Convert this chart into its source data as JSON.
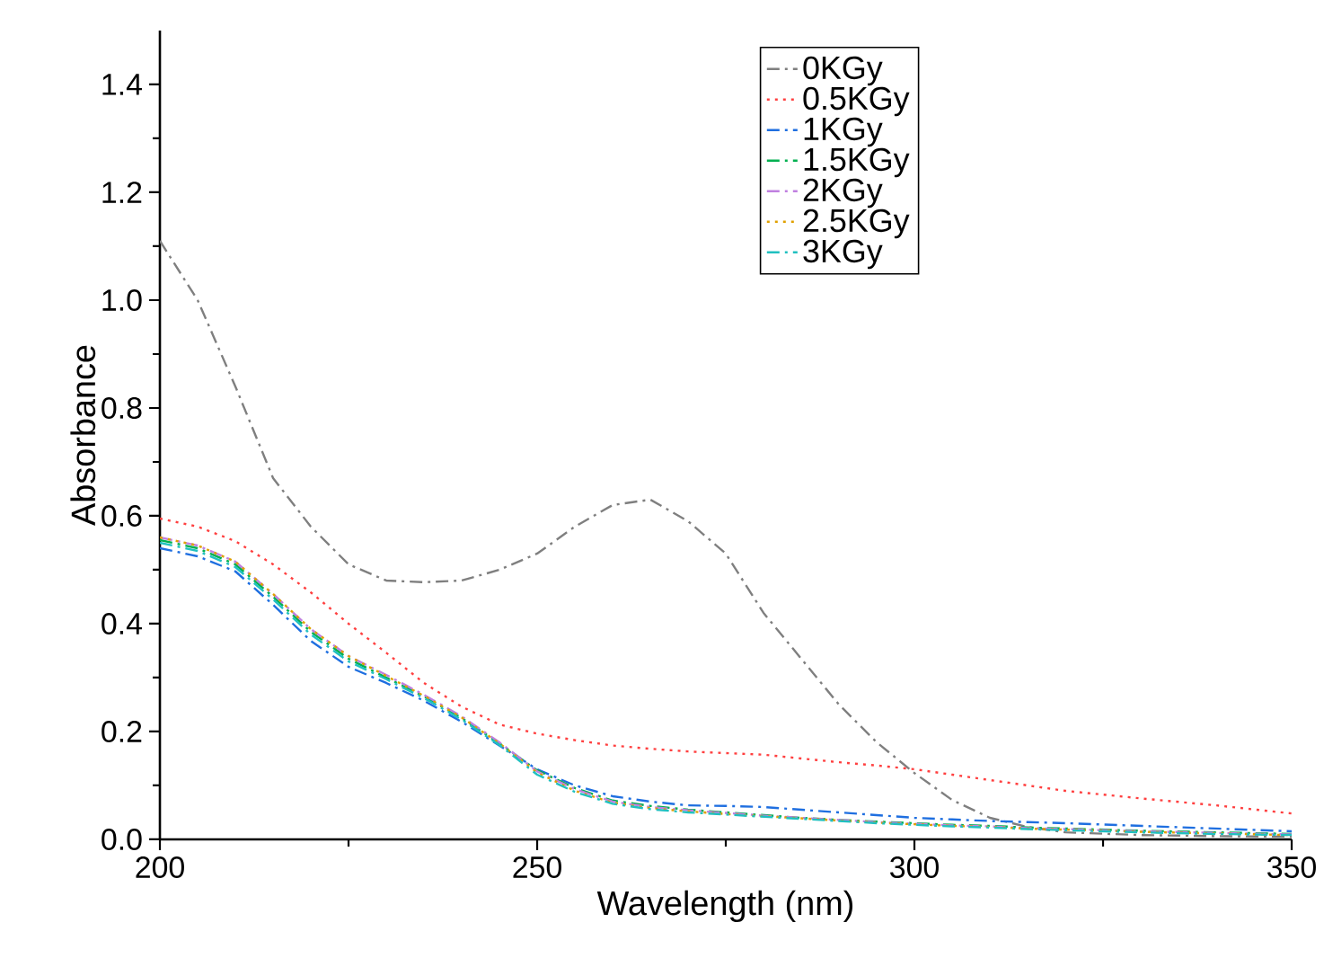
{
  "chart_data": {
    "type": "line",
    "xlabel": "Wavelength (nm)",
    "ylabel": "Absorbance",
    "xlim": [
      200,
      350
    ],
    "ylim": [
      0,
      1.5
    ],
    "xticks": [
      200,
      250,
      300,
      350
    ],
    "yticks": [
      {
        "value": 0,
        "label": "0.0"
      },
      {
        "value": 0.2,
        "label": "0.2"
      },
      {
        "value": 0.4,
        "label": "0.4"
      },
      {
        "value": 0.6,
        "label": "0.6"
      },
      {
        "value": 0.8,
        "label": "0.8"
      },
      {
        "value": 1.0,
        "label": "1.0"
      },
      {
        "value": 1.2,
        "label": "1.2"
      },
      {
        "value": 1.4,
        "label": "1.4"
      }
    ],
    "grid": false,
    "legend": "top right",
    "marker": "none",
    "x": [
      200,
      205,
      210,
      215,
      220,
      225,
      230,
      235,
      240,
      245,
      250,
      255,
      260,
      265,
      270,
      275,
      280,
      285,
      290,
      295,
      300,
      305,
      310,
      315,
      320,
      330,
      340,
      350
    ],
    "series": [
      {
        "name": "0KGy",
        "color": "#7f7f7f",
        "line_style": "dashed",
        "values": [
          1.11,
          1.0,
          0.84,
          0.67,
          0.58,
          0.51,
          0.48,
          0.477,
          0.48,
          0.5,
          0.53,
          0.58,
          0.62,
          0.63,
          0.59,
          0.53,
          0.42,
          0.335,
          0.25,
          0.18,
          0.123,
          0.073,
          0.04,
          0.023,
          0.013,
          0.008,
          0.006,
          0.005
        ]
      },
      {
        "name": "0.5KGy",
        "color": "#ff4040",
        "line_style": "dotted",
        "values": [
          0.595,
          0.58,
          0.553,
          0.51,
          0.458,
          0.4,
          0.346,
          0.29,
          0.246,
          0.213,
          0.196,
          0.184,
          0.174,
          0.168,
          0.163,
          0.16,
          0.157,
          0.15,
          0.143,
          0.137,
          0.13,
          0.12,
          0.11,
          0.1,
          0.09,
          0.076,
          0.063,
          0.048
        ]
      },
      {
        "name": "1KGy",
        "color": "#1f6fe0",
        "line_style": "dashed",
        "values": [
          0.54,
          0.525,
          0.497,
          0.435,
          0.368,
          0.32,
          0.29,
          0.257,
          0.218,
          0.174,
          0.13,
          0.1,
          0.08,
          0.07,
          0.063,
          0.062,
          0.06,
          0.055,
          0.05,
          0.045,
          0.04,
          0.037,
          0.034,
          0.032,
          0.03,
          0.025,
          0.02,
          0.015
        ]
      },
      {
        "name": "1.5KGy",
        "color": "#00b050",
        "line_style": "dashed",
        "values": [
          0.555,
          0.54,
          0.51,
          0.45,
          0.385,
          0.335,
          0.3,
          0.265,
          0.225,
          0.178,
          0.128,
          0.095,
          0.072,
          0.062,
          0.055,
          0.05,
          0.045,
          0.04,
          0.036,
          0.033,
          0.03,
          0.027,
          0.025,
          0.022,
          0.02,
          0.016,
          0.013,
          0.01
        ]
      },
      {
        "name": "2KGy",
        "color": "#c080e0",
        "line_style": "dashed",
        "values": [
          0.56,
          0.545,
          0.515,
          0.455,
          0.39,
          0.34,
          0.305,
          0.268,
          0.228,
          0.18,
          0.126,
          0.093,
          0.07,
          0.06,
          0.054,
          0.049,
          0.044,
          0.04,
          0.036,
          0.032,
          0.029,
          0.026,
          0.024,
          0.021,
          0.019,
          0.015,
          0.012,
          0.009
        ]
      },
      {
        "name": "2.5KGy",
        "color": "#e0a000",
        "line_style": "dotted",
        "values": [
          0.56,
          0.545,
          0.515,
          0.455,
          0.39,
          0.34,
          0.303,
          0.266,
          0.226,
          0.178,
          0.124,
          0.09,
          0.068,
          0.058,
          0.052,
          0.047,
          0.043,
          0.039,
          0.035,
          0.031,
          0.028,
          0.025,
          0.023,
          0.02,
          0.018,
          0.014,
          0.011,
          0.008
        ]
      },
      {
        "name": "3KGy",
        "color": "#20c0c0",
        "line_style": "dashed",
        "values": [
          0.55,
          0.535,
          0.505,
          0.445,
          0.38,
          0.33,
          0.297,
          0.262,
          0.222,
          0.175,
          0.12,
          0.088,
          0.066,
          0.056,
          0.05,
          0.046,
          0.042,
          0.038,
          0.034,
          0.03,
          0.027,
          0.024,
          0.022,
          0.019,
          0.017,
          0.013,
          0.01,
          0.008
        ]
      }
    ]
  }
}
